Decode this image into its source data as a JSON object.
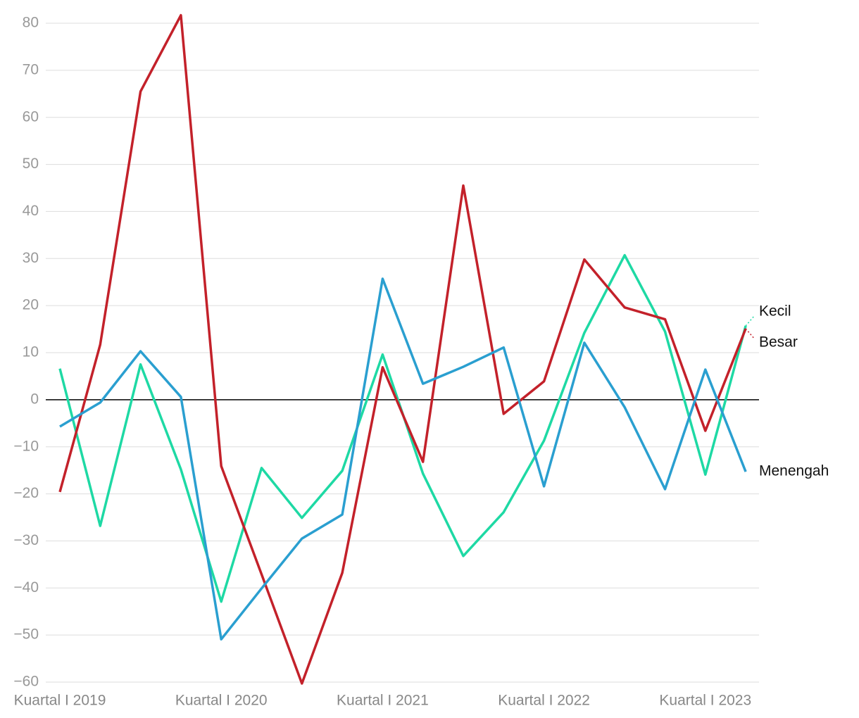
{
  "chart_data": {
    "type": "line",
    "categories": [
      "Kuartal I 2019",
      null,
      null,
      null,
      "Kuartal I 2020",
      null,
      null,
      null,
      "Kuartal I 2021",
      null,
      null,
      null,
      "Kuartal I 2022",
      null,
      null,
      null,
      "Kuartal I 2023",
      null
    ],
    "series": [
      {
        "name": "Kecil",
        "color": "#1ed9a4",
        "values": [
          6.6,
          -26.8,
          7.5,
          -14.8,
          -42.9,
          -14.5,
          -25.1,
          -15.1,
          9.6,
          -15.7,
          -33.2,
          -23.9,
          -8.7,
          14.2,
          30.7,
          14.5,
          -15.9,
          15.7
        ]
      },
      {
        "name": "Besar",
        "color": "#c3212a",
        "values": [
          -19.6,
          11.7,
          65.5,
          81.7,
          -14.1,
          -37.1,
          -60.3,
          -36.8,
          6.9,
          -13.2,
          45.5,
          -3.0,
          3.9,
          29.8,
          19.6,
          17.1,
          -6.6,
          15.1
        ]
      },
      {
        "name": "Menengah",
        "color": "#2a9fd0",
        "values": [
          -5.7,
          -0.6,
          10.3,
          0.6,
          -50.9,
          -40.1,
          -29.5,
          -24.4,
          25.7,
          3.4,
          7.0,
          11.1,
          -18.4,
          12.1,
          -1.6,
          -19.0,
          6.4,
          -15.3
        ]
      }
    ],
    "ylim": [
      -60,
      80
    ],
    "yticks": [
      {
        "value": -60,
        "label": "−60"
      },
      {
        "value": -50,
        "label": "−50"
      },
      {
        "value": -40,
        "label": "−40"
      },
      {
        "value": -30,
        "label": "−30"
      },
      {
        "value": -20,
        "label": "−20"
      },
      {
        "value": -10,
        "label": "−10"
      },
      0,
      10,
      20,
      30,
      40,
      50,
      60,
      70,
      80
    ],
    "grid": true
  }
}
